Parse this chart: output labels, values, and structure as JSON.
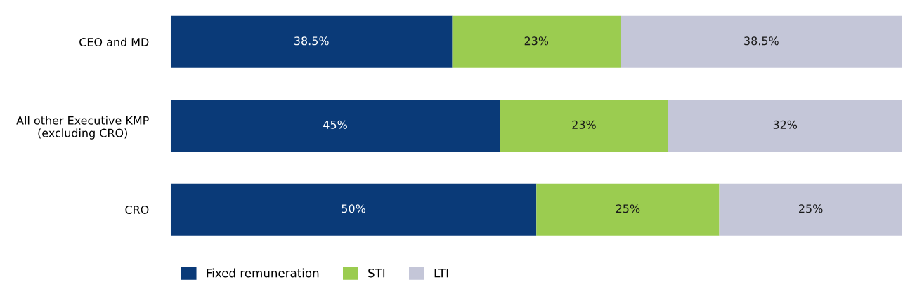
{
  "chart_data": {
    "type": "bar",
    "orientation": "horizontal",
    "stacked": true,
    "categories": [
      "CEO and MD",
      "All other Executive KMP\n(excluding CRO)",
      "CRO"
    ],
    "series": [
      {
        "name": "Fixed remuneration",
        "color": "#0a3a78",
        "values": [
          38.5,
          45,
          50
        ],
        "value_labels": [
          "38.5%",
          "45%",
          "50%"
        ]
      },
      {
        "name": "STI",
        "color": "#9bcc50",
        "values": [
          23,
          23,
          25
        ],
        "value_labels": [
          "23%",
          "23%",
          "25%"
        ]
      },
      {
        "name": "LTI",
        "color": "#c4c6d8",
        "values": [
          38.5,
          32,
          25
        ],
        "value_labels": [
          "38.5%",
          "32%",
          "25%"
        ]
      }
    ],
    "legend": "bottom left",
    "grid": false
  }
}
